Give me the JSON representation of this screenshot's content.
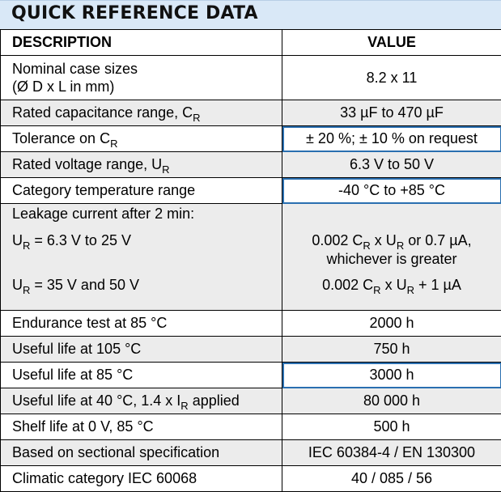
{
  "title": "QUICK REFERENCE DATA",
  "headers": {
    "description": "DESCRIPTION",
    "value": "VALUE"
  },
  "rows": [
    {
      "desc_line1": "Nominal case sizes",
      "desc_line2": "(Ø D x L in mm)",
      "value": "8.2 x 11"
    },
    {
      "desc": "Rated capacitance range, C",
      "desc_sub": "R",
      "value": "33 µF to 470 µF"
    },
    {
      "desc": "Tolerance on C",
      "desc_sub": "R",
      "value": "± 20 %; ± 10 % on request"
    },
    {
      "desc": "Rated voltage range, U",
      "desc_sub": "R",
      "value": "6.3 V to 50 V"
    },
    {
      "desc": "Category temperature range",
      "value": "-40 °C to +85 °C"
    },
    {
      "desc_heading": "Leakage current after 2 min:",
      "cond1_pre": "U",
      "cond1_sub": "R",
      "cond1_post": " = 6.3 V to 25 V",
      "val1_a": "0.002 C",
      "val1_sub1": "R",
      "val1_b": " x U",
      "val1_sub2": "R",
      "val1_c": " or 0.7 µA,",
      "val1_line2": "whichever is greater",
      "cond2_pre": "U",
      "cond2_sub": "R",
      "cond2_post": " = 35 V and 50 V",
      "val2_a": "0.002 C",
      "val2_sub1": "R",
      "val2_b": " x U",
      "val2_sub2": "R",
      "val2_c": " + 1 µA"
    },
    {
      "desc": "Endurance test at 85 °C",
      "value": "2000 h"
    },
    {
      "desc": "Useful life at 105 °C",
      "value": "750 h"
    },
    {
      "desc": "Useful life at 85 °C",
      "value": "3000 h"
    },
    {
      "desc": "Useful life at 40 °C, 1.4 x I",
      "desc_sub": "R",
      "desc_post": " applied",
      "value": "80 000 h"
    },
    {
      "desc": "Shelf life at 0 V, 85 °C",
      "value": "500 h"
    },
    {
      "desc": "Based on sectional specification",
      "value": "IEC 60384-4 / EN 130300"
    },
    {
      "desc": "Climatic category IEC 60068",
      "value": "40 / 085 / 56"
    }
  ],
  "colors": {
    "title_band": "#d9e8f7",
    "shaded_row": "#ececec",
    "highlight_border": "#2a6fb0"
  }
}
